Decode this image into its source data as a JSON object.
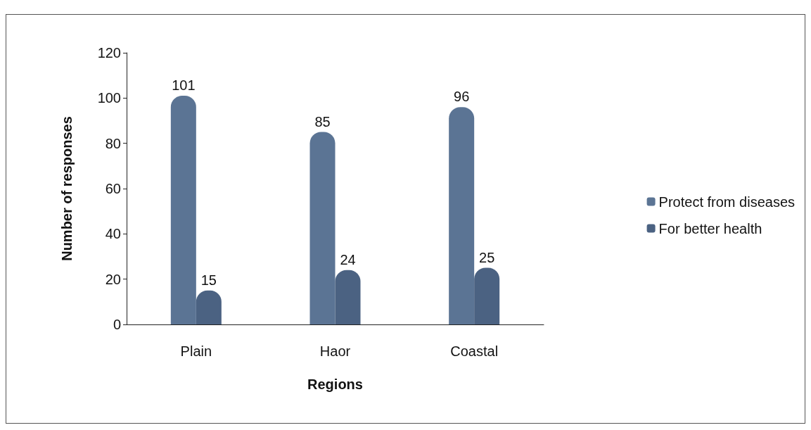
{
  "chart_data": {
    "type": "bar",
    "xlabel": "Regions",
    "ylabel": "Number of responses",
    "categories": [
      "Plain",
      "Haor",
      "Coastal"
    ],
    "series": [
      {
        "name": "Protect from diseases",
        "color": "#5b7494",
        "values": [
          101,
          85,
          96
        ]
      },
      {
        "name": "For better health",
        "color": "#4b6282",
        "values": [
          15,
          24,
          25
        ]
      }
    ],
    "ylim": [
      0,
      120
    ],
    "yticks": [
      0,
      20,
      40,
      60,
      80,
      100,
      120
    ],
    "grid": false,
    "legend": "right",
    "data_labels": true
  }
}
